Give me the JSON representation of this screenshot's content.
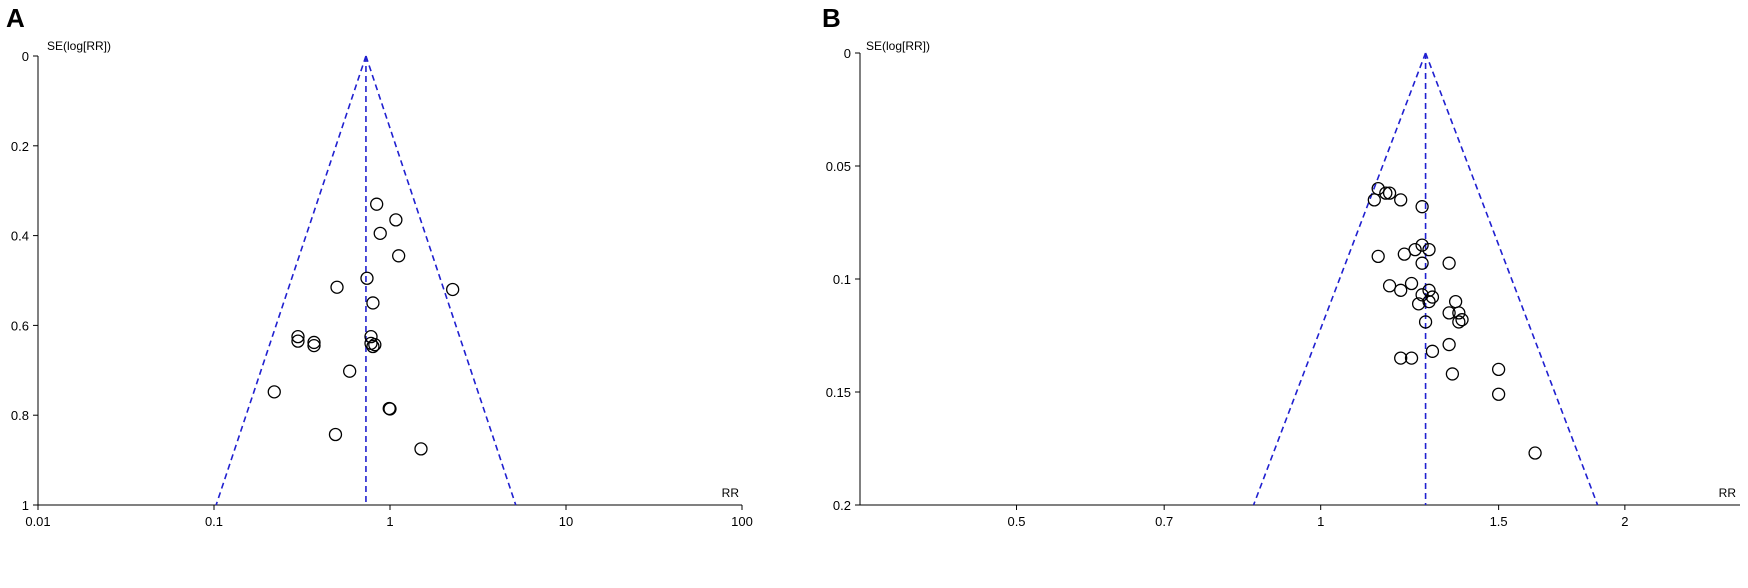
{
  "colors": {
    "axis": "#000000",
    "funnel": "#2020d0",
    "marker": "#000000",
    "background": "#ffffff"
  },
  "chart_data": [
    {
      "type": "scatter",
      "panel_label": "A",
      "title": "",
      "xlabel": "RR",
      "ylabel": "SE(log[RR])",
      "x_scale": "log",
      "y_inverted": true,
      "xlim": [
        0.01,
        100
      ],
      "ylim": [
        0,
        1
      ],
      "x_ticks": [
        0.01,
        0.1,
        1,
        10,
        100
      ],
      "x_tick_labels": [
        "0.01",
        "0.1",
        "1",
        "10",
        "100"
      ],
      "y_ticks": [
        0,
        0.2,
        0.4,
        0.6,
        0.8,
        1
      ],
      "y_tick_labels": [
        "0",
        "0.2",
        "0.4",
        "0.6",
        "0.8",
        "1"
      ],
      "grid": false,
      "funnel": {
        "pooled_rr": 0.73,
        "line_style": "dashed"
      },
      "points": [
        {
          "x": 0.84,
          "y": 0.33
        },
        {
          "x": 1.08,
          "y": 0.365
        },
        {
          "x": 0.88,
          "y": 0.395
        },
        {
          "x": 1.12,
          "y": 0.445
        },
        {
          "x": 0.74,
          "y": 0.495
        },
        {
          "x": 0.5,
          "y": 0.515
        },
        {
          "x": 2.27,
          "y": 0.52
        },
        {
          "x": 0.8,
          "y": 0.55
        },
        {
          "x": 0.3,
          "y": 0.625
        },
        {
          "x": 0.3,
          "y": 0.635
        },
        {
          "x": 0.37,
          "y": 0.638
        },
        {
          "x": 0.37,
          "y": 0.645
        },
        {
          "x": 0.78,
          "y": 0.625
        },
        {
          "x": 0.78,
          "y": 0.64
        },
        {
          "x": 0.8,
          "y": 0.647
        },
        {
          "x": 0.82,
          "y": 0.643
        },
        {
          "x": 0.59,
          "y": 0.702
        },
        {
          "x": 0.22,
          "y": 0.748
        },
        {
          "x": 0.99,
          "y": 0.785
        },
        {
          "x": 1.0,
          "y": 0.786
        },
        {
          "x": 0.49,
          "y": 0.843
        },
        {
          "x": 1.5,
          "y": 0.875
        }
      ]
    },
    {
      "type": "scatter",
      "panel_label": "B",
      "title": "",
      "xlabel": "RR",
      "ylabel": "SE(log[RR])",
      "x_scale": "log",
      "y_inverted": true,
      "xlim": [
        0.35,
        2.6
      ],
      "ylim": [
        0,
        0.2
      ],
      "x_ticks": [
        0.5,
        0.7,
        1,
        1.5,
        2
      ],
      "x_tick_labels": [
        "0.5",
        "0.7",
        "1",
        "1.5",
        "2"
      ],
      "y_ticks": [
        0,
        0.05,
        0.1,
        0.15,
        0.2
      ],
      "y_tick_labels": [
        "0",
        "0.05",
        "0.1",
        "0.15",
        "0.2"
      ],
      "grid": false,
      "funnel": {
        "pooled_rr": 1.27,
        "line_style": "dashed"
      },
      "points": [
        {
          "x": 1.14,
          "y": 0.06
        },
        {
          "x": 1.16,
          "y": 0.062
        },
        {
          "x": 1.17,
          "y": 0.062
        },
        {
          "x": 1.13,
          "y": 0.065
        },
        {
          "x": 1.2,
          "y": 0.065
        },
        {
          "x": 1.26,
          "y": 0.068
        },
        {
          "x": 1.26,
          "y": 0.085
        },
        {
          "x": 1.24,
          "y": 0.087
        },
        {
          "x": 1.28,
          "y": 0.087
        },
        {
          "x": 1.21,
          "y": 0.089
        },
        {
          "x": 1.14,
          "y": 0.09
        },
        {
          "x": 1.26,
          "y": 0.093
        },
        {
          "x": 1.34,
          "y": 0.093
        },
        {
          "x": 1.17,
          "y": 0.103
        },
        {
          "x": 1.23,
          "y": 0.102
        },
        {
          "x": 1.2,
          "y": 0.105
        },
        {
          "x": 1.28,
          "y": 0.105
        },
        {
          "x": 1.26,
          "y": 0.107
        },
        {
          "x": 1.29,
          "y": 0.108
        },
        {
          "x": 1.28,
          "y": 0.11
        },
        {
          "x": 1.25,
          "y": 0.111
        },
        {
          "x": 1.36,
          "y": 0.11
        },
        {
          "x": 1.34,
          "y": 0.115
        },
        {
          "x": 1.37,
          "y": 0.115
        },
        {
          "x": 1.38,
          "y": 0.118
        },
        {
          "x": 1.37,
          "y": 0.119
        },
        {
          "x": 1.27,
          "y": 0.119
        },
        {
          "x": 1.34,
          "y": 0.129
        },
        {
          "x": 1.29,
          "y": 0.132
        },
        {
          "x": 1.2,
          "y": 0.135
        },
        {
          "x": 1.23,
          "y": 0.135
        },
        {
          "x": 1.5,
          "y": 0.14
        },
        {
          "x": 1.35,
          "y": 0.142
        },
        {
          "x": 1.5,
          "y": 0.151
        },
        {
          "x": 1.63,
          "y": 0.177
        }
      ]
    }
  ]
}
